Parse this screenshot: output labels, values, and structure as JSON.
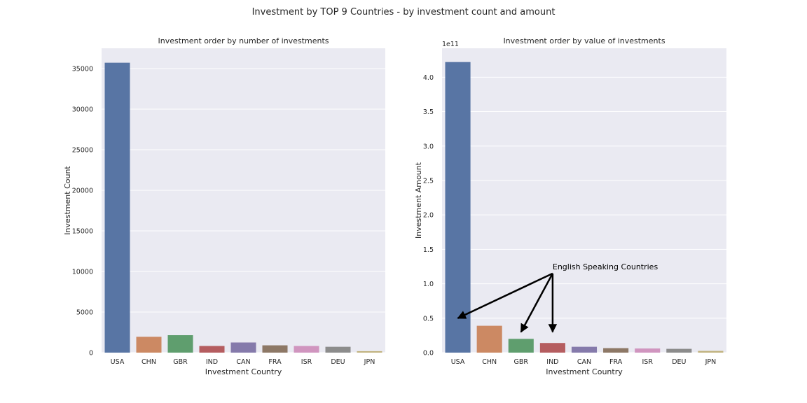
{
  "figure": {
    "suptitle": "Investment by TOP 9 Countries - by investment count and amount"
  },
  "colors": {
    "axes_bg": "#eaeaf2",
    "grid": "#ffffff",
    "bars": [
      "#5875a4",
      "#cc8963",
      "#5f9e6e",
      "#b55d60",
      "#857aab",
      "#8d7866",
      "#d095bf",
      "#8c8c8c",
      "#c1b37f"
    ]
  },
  "chart_data": [
    {
      "type": "bar",
      "title": "Investment order by number of investments",
      "xlabel": "Investment Country",
      "ylabel": "Investment Count",
      "categories": [
        "USA",
        "CHN",
        "GBR",
        "IND",
        "CAN",
        "FRA",
        "ISR",
        "DEU",
        "JPN"
      ],
      "values": [
        35720,
        1950,
        2150,
        820,
        1250,
        900,
        820,
        720,
        180
      ],
      "ylim": [
        0,
        37500
      ],
      "yticks": [
        0,
        5000,
        10000,
        15000,
        20000,
        25000,
        30000,
        35000
      ],
      "ytick_labels": [
        "0",
        "5000",
        "10000",
        "15000",
        "20000",
        "25000",
        "30000",
        "35000"
      ],
      "grid": true
    },
    {
      "type": "bar",
      "title": "Investment order by value of investments",
      "xlabel": "Investment Country",
      "ylabel": "Investment Amount",
      "offset_label": "1e11",
      "categories": [
        "USA",
        "CHN",
        "GBR",
        "IND",
        "CAN",
        "FRA",
        "ISR",
        "DEU",
        "JPN"
      ],
      "values": [
        4.22,
        0.39,
        0.2,
        0.14,
        0.085,
        0.065,
        0.06,
        0.055,
        0.025
      ],
      "ylim": [
        0,
        4.42
      ],
      "yticks": [
        0,
        0.5,
        1.0,
        1.5,
        2.0,
        2.5,
        3.0,
        3.5,
        4.0
      ],
      "ytick_labels": [
        "0.0",
        "0.5",
        "1.0",
        "1.5",
        "2.0",
        "2.5",
        "3.0",
        "3.5",
        "4.0"
      ],
      "grid": true,
      "annotation": {
        "text": "English Speaking Countries",
        "text_at": [
          3.0,
          1.21
        ],
        "arrow_from": [
          3.0,
          1.15
        ],
        "targets": [
          [
            0.0,
            0.5
          ],
          [
            2.0,
            0.3
          ],
          [
            3.0,
            0.3
          ]
        ]
      }
    }
  ]
}
